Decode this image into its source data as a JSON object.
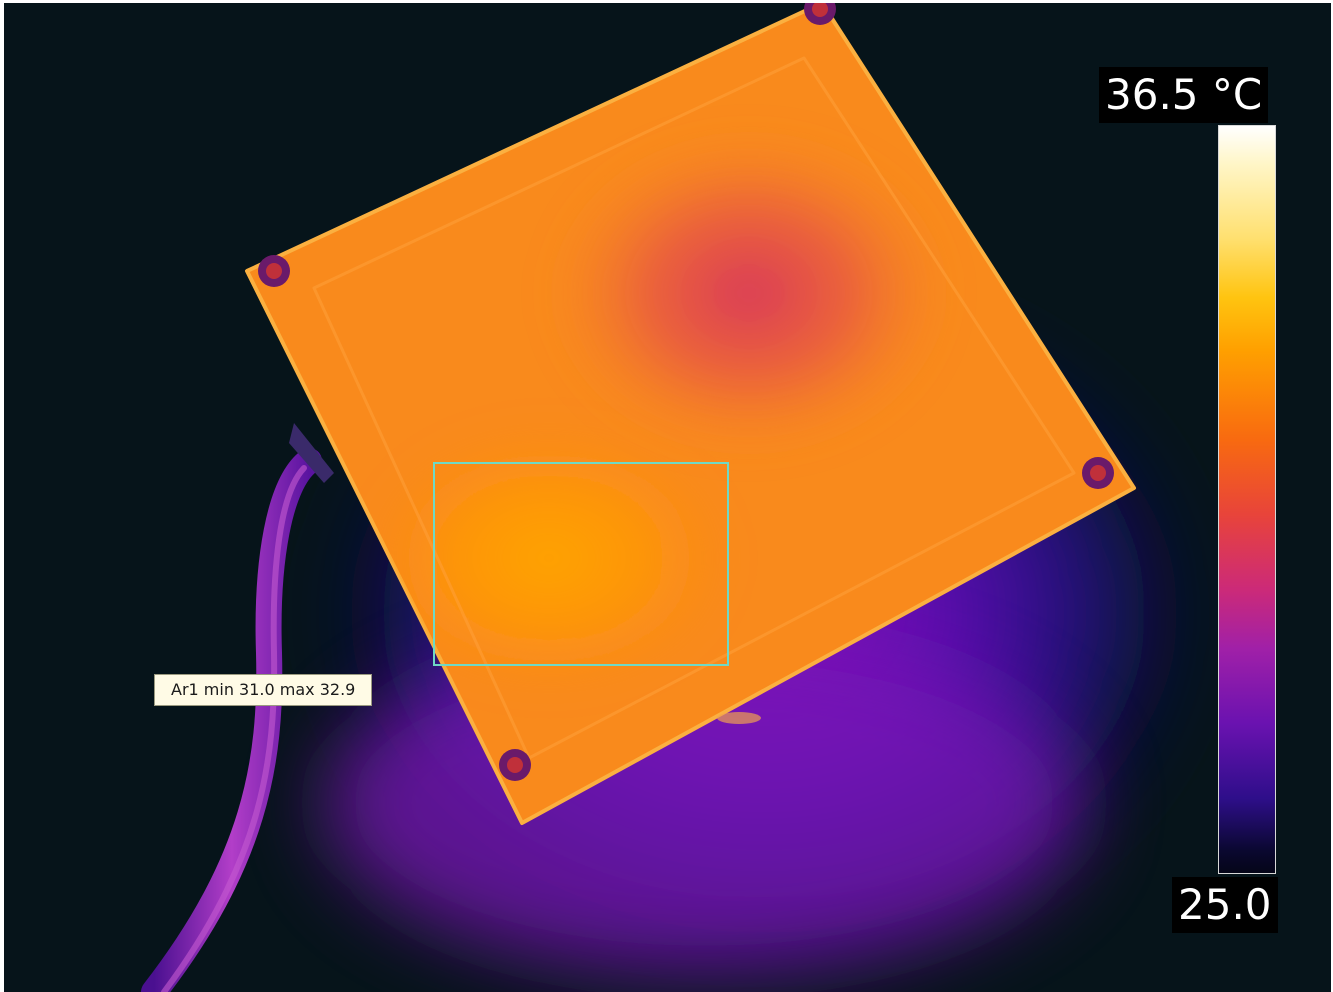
{
  "scale": {
    "max_label": "36.5 °C",
    "min_label": "25.0",
    "palette": "iron",
    "colors": [
      "#ffffff",
      "#ffc410",
      "#f86a10",
      "#cc2a78",
      "#6a12b0",
      "#050518"
    ]
  },
  "roi": {
    "label": "Ar1 min 31.0 max 32.9",
    "outline_color": "#6fd9c5"
  },
  "scene": {
    "background_color": "#06141a",
    "hot_spot_color": "#ffa000",
    "plate_color": "#f98a1c",
    "halo_color": "#5a10b4"
  }
}
